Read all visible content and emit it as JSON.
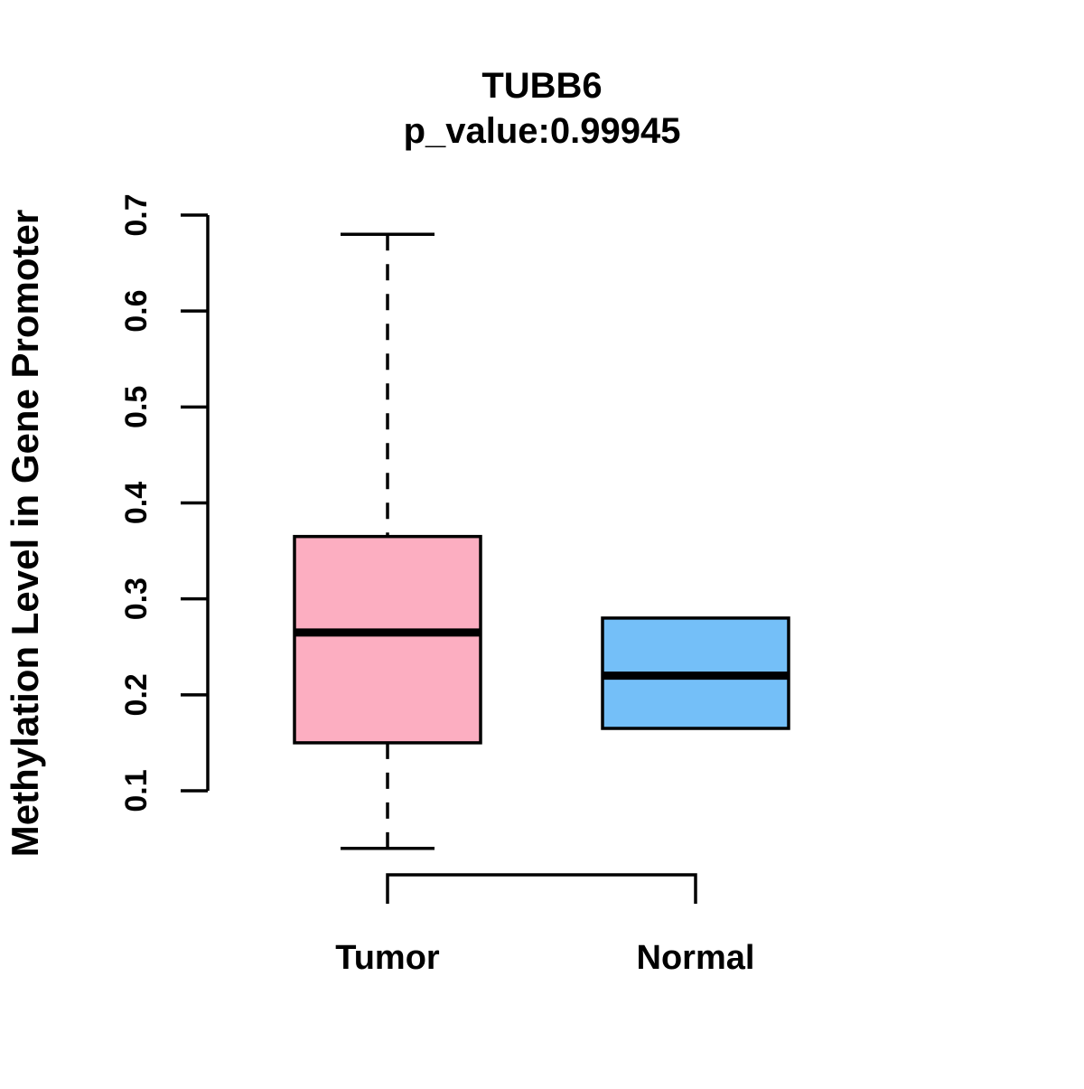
{
  "title": "TUBB6",
  "subtitle": "p_value:0.99945",
  "chart_data": {
    "type": "boxplot",
    "title": "TUBB6",
    "subtitle": "p_value:0.99945",
    "ylabel": "Methylation Level in Gene Promoter",
    "xlabel": "",
    "ylim": [
      0.1,
      0.7
    ],
    "yticks": [
      "0.1",
      "0.2",
      "0.3",
      "0.4",
      "0.5",
      "0.6",
      "0.7"
    ],
    "grid": false,
    "legend": "none",
    "categories": [
      "Tumor",
      "Normal"
    ],
    "series": [
      {
        "name": "Tumor",
        "color": "#FCAEC1",
        "whisker_low": 0.04,
        "q1": 0.15,
        "median": 0.265,
        "q3": 0.365,
        "whisker_high": 0.68
      },
      {
        "name": "Normal",
        "color": "#74BFF8",
        "whisker_low": 0.165,
        "q1": 0.165,
        "median": 0.22,
        "q3": 0.28,
        "whisker_high": 0.28
      }
    ]
  },
  "colors": {
    "tumor_box": "#FCAEC1",
    "normal_box": "#74BFF8",
    "axis": "#000000",
    "background": "#ffffff"
  }
}
